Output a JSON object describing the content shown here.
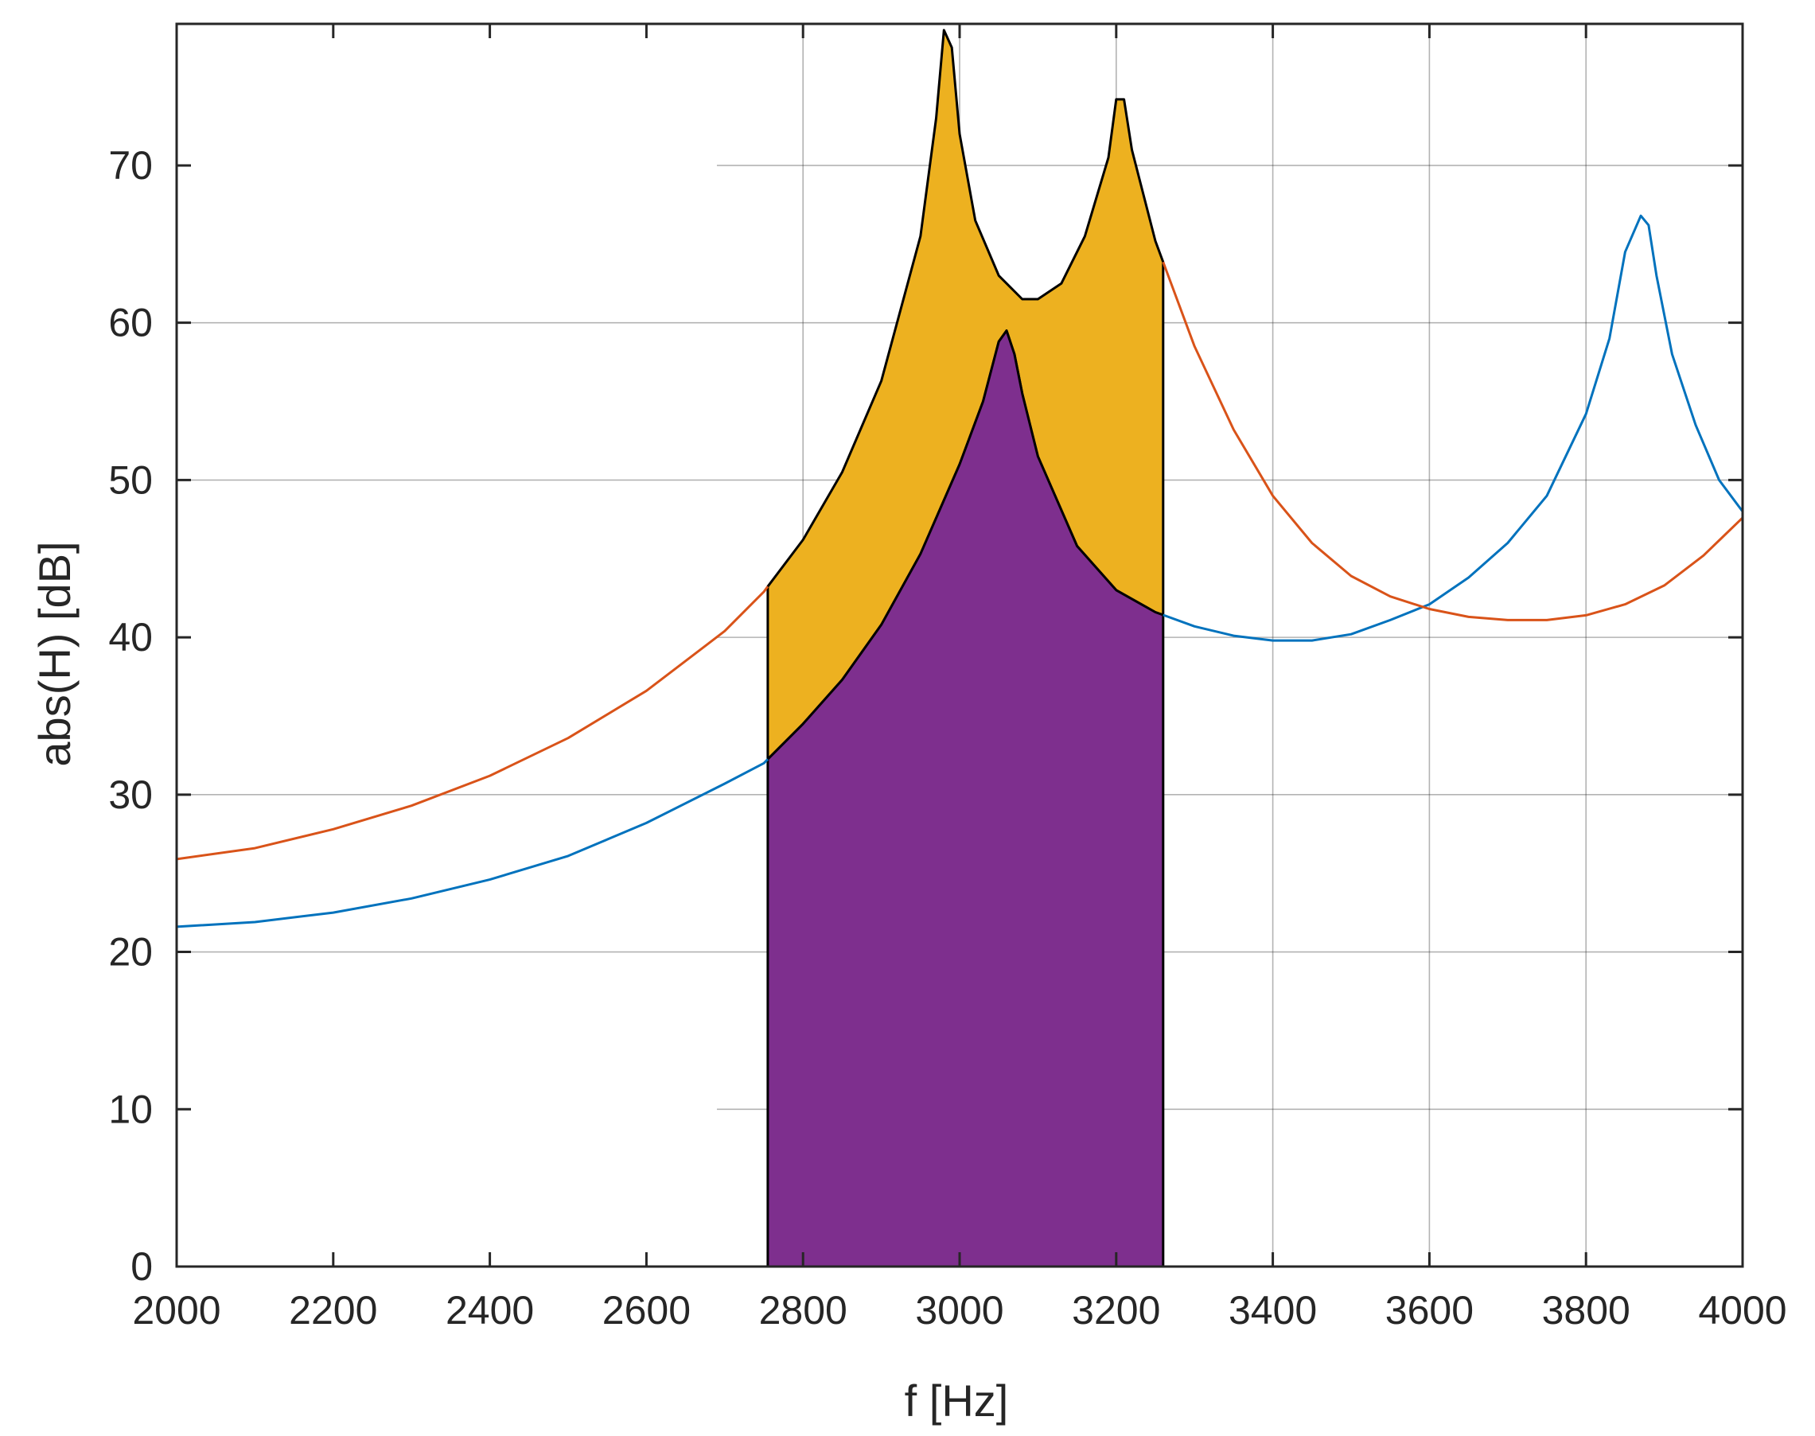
{
  "chart_data": {
    "type": "line",
    "xlabel": "f [Hz]",
    "ylabel": "abs(H) [dB]",
    "xlim": [
      2000,
      4000
    ],
    "ylim": [
      0,
      79
    ],
    "xticks": [
      2000,
      2200,
      2400,
      2600,
      2800,
      3000,
      3200,
      3400,
      3600,
      3800,
      4000
    ],
    "yticks": [
      0,
      10,
      20,
      30,
      40,
      50,
      60,
      70
    ],
    "xtick_labels": [
      "2000",
      "2200",
      "2400",
      "2600",
      "2800",
      "3000",
      "3200",
      "3400",
      "3600",
      "3800",
      "4000"
    ],
    "ytick_labels": [
      "0",
      "10",
      "20",
      "30",
      "40",
      "50",
      "60",
      "70"
    ],
    "grid": "partial (grid shown only right of about f = 2690 Hz, plus horizontal lines at 20, 30, 50, 60 on the left part)",
    "colors": {
      "series1": "#0072BD",
      "series2": "#D95319",
      "fill_band": "#EDB120",
      "fill_under": "#7E2F8E",
      "axes": "#262626"
    },
    "series": [
      {
        "color": "#0072BD",
        "x": [
          2000,
          2100,
          2200,
          2300,
          2400,
          2500,
          2600,
          2700,
          2750,
          2800,
          2850,
          2900,
          2950,
          3000,
          3030,
          3050,
          3060,
          3070,
          3080,
          3100,
          3150,
          3200,
          3250,
          3300,
          3350,
          3400,
          3450,
          3500,
          3550,
          3600,
          3650,
          3700,
          3750,
          3800,
          3830,
          3850,
          3870,
          3880,
          3890,
          3910,
          3940,
          3970,
          4000
        ],
        "y": [
          21.6,
          21.9,
          22.5,
          23.4,
          24.6,
          26.1,
          28.2,
          30.7,
          32.0,
          34.5,
          37.3,
          40.8,
          45.3,
          51.0,
          55.0,
          58.8,
          59.5,
          58.0,
          55.5,
          51.5,
          45.8,
          43.0,
          41.6,
          40.7,
          40.1,
          39.8,
          39.8,
          40.2,
          41.1,
          42.1,
          43.8,
          46.0,
          49.0,
          54.2,
          59.0,
          64.5,
          66.8,
          66.2,
          63.0,
          58.0,
          53.5,
          50.0,
          48.0
        ]
      },
      {
        "color": "#D95319",
        "x": [
          2000,
          2100,
          2200,
          2300,
          2400,
          2500,
          2600,
          2700,
          2750,
          2800,
          2850,
          2900,
          2950,
          2970,
          2980,
          2990,
          3000,
          3020,
          3050,
          3080,
          3100,
          3130,
          3160,
          3190,
          3200,
          3210,
          3220,
          3250,
          3300,
          3350,
          3400,
          3450,
          3500,
          3550,
          3600,
          3650,
          3700,
          3750,
          3800,
          3850,
          3900,
          3950,
          4000
        ],
        "y": [
          25.9,
          26.6,
          27.8,
          29.3,
          31.2,
          33.6,
          36.6,
          40.4,
          42.9,
          46.2,
          50.5,
          56.3,
          65.5,
          73.0,
          78.6,
          77.5,
          72.0,
          66.5,
          63.0,
          61.5,
          61.5,
          62.5,
          65.5,
          70.5,
          74.2,
          74.2,
          71.0,
          65.2,
          58.5,
          53.2,
          49.0,
          46.0,
          43.9,
          42.6,
          41.8,
          41.3,
          41.1,
          41.1,
          41.4,
          42.1,
          43.3,
          45.2,
          47.6
        ]
      }
    ],
    "shaded_regions": [
      {
        "color": "#EDB120",
        "x_range": [
          2755,
          3260
        ],
        "between": "series1 and series2"
      },
      {
        "color": "#7E2F8E",
        "x_range": [
          2755,
          3260
        ],
        "between": "0 and series1"
      }
    ]
  }
}
